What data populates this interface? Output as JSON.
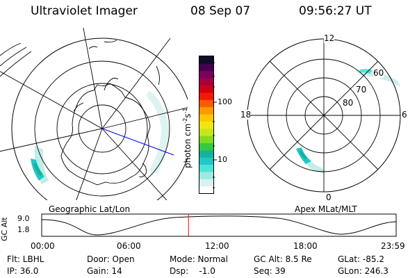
{
  "header": {
    "instrument": "Ultraviolet Imager",
    "date": "08 Sep 07",
    "time": "09:56:27 UT"
  },
  "geo_map": {
    "label": "Geographic Lat/Lon"
  },
  "colorbar": {
    "label_main": "photon cm",
    "label_sup1": "-2",
    "label_mid": "s",
    "label_sup2": "-1",
    "ticks": [
      {
        "label": "100",
        "value": 100
      },
      {
        "label": "10",
        "value": 10
      }
    ],
    "colors": [
      "#ffffff",
      "#d9f2f0",
      "#9ee9e4",
      "#4fe3d9",
      "#22c7c7",
      "#15b39a",
      "#36c940",
      "#7fdc20",
      "#c6e61a",
      "#f2e60e",
      "#ffc800",
      "#ff9900",
      "#ff5a00",
      "#f01a00",
      "#cf0016",
      "#a8003a",
      "#7a0060",
      "#45004f",
      "#140a28"
    ]
  },
  "polar_map": {
    "label": "Apex MLat/MLT",
    "mlt_labels": {
      "top": "12",
      "bottom": "0",
      "left": "18",
      "right": "6"
    },
    "mlat_labels": [
      "60",
      "70",
      "80"
    ]
  },
  "timeline": {
    "ylabel": "GC Alt",
    "yticks": [
      "9.0",
      "1.8"
    ],
    "xticks": [
      "00:00",
      "06:00",
      "12:00",
      "18:00",
      "23:59"
    ],
    "current_marker_hours": 9.94,
    "marker_color": "#ff0000"
  },
  "info": {
    "filter": "Flt: LBHL",
    "door": "Door: Open",
    "mode": "Mode: Normal",
    "gc_alt": "GC Alt: 8.5 Re",
    "glat": "GLat: -85.2",
    "ip": "IP: 36.0",
    "gain": "Gain: 14",
    "dsp": "Dsp:    -1.0",
    "seq": "Seq: 39",
    "glon": "GLon: 246.3"
  }
}
